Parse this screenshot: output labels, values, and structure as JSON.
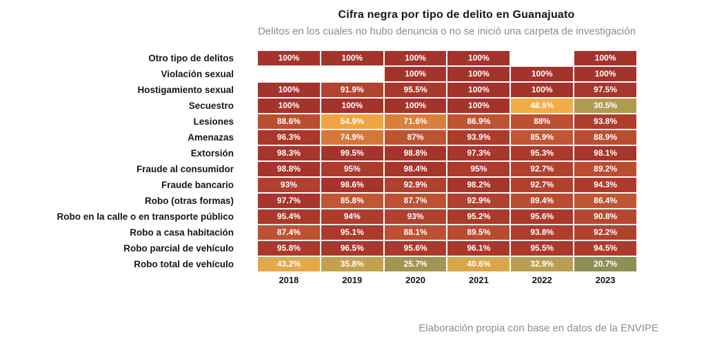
{
  "header": {
    "title": "Cifra negra por tipo de delito en Guanajuato",
    "subtitle": "Delitos en los cuales no hubo denuncia o no se inició una carpeta de investigación"
  },
  "footer": {
    "source": "Elaboración propia con base en datos de la ENVIPE"
  },
  "chart_data": {
    "type": "heatmap",
    "title": "Cifra negra por tipo de delito en Guanajuato",
    "subtitle": "Delitos en los cuales no hubo denuncia o no se inició una carpeta de investigación",
    "source": "Elaboración propia con base en datos de la ENVIPE",
    "value_unit": "%",
    "columns": [
      "2018",
      "2019",
      "2020",
      "2021",
      "2022",
      "2023"
    ],
    "rows": [
      {
        "label": "Otro tipo de delitos",
        "values": [
          100,
          100,
          100,
          100,
          null,
          100
        ]
      },
      {
        "label": "Violación sexual",
        "values": [
          null,
          null,
          100,
          100,
          100,
          100
        ]
      },
      {
        "label": "Hostigamiento sexual",
        "values": [
          100,
          91.9,
          95.5,
          100,
          100,
          97.5
        ]
      },
      {
        "label": "Secuestro",
        "values": [
          100,
          100,
          100,
          100,
          48.5,
          30.5
        ]
      },
      {
        "label": "Lesiones",
        "values": [
          88.6,
          54.9,
          71.6,
          86.9,
          88,
          93.8
        ]
      },
      {
        "label": "Amenazas",
        "values": [
          96.3,
          74.9,
          87,
          93.9,
          85.9,
          88.9
        ]
      },
      {
        "label": "Extorsión",
        "values": [
          98.3,
          99.5,
          98.8,
          97.3,
          95.3,
          98.1
        ]
      },
      {
        "label": "Fraude al consumidor",
        "values": [
          98.8,
          95,
          98.4,
          95,
          92.7,
          89.2
        ]
      },
      {
        "label": "Fraude bancario",
        "values": [
          93,
          98.6,
          92.9,
          98.2,
          92.7,
          94.3
        ]
      },
      {
        "label": "Robo (otras formas)",
        "values": [
          97.7,
          85.8,
          87.7,
          92.9,
          89.4,
          86.4
        ]
      },
      {
        "label": "Robo en la calle o en transporte público",
        "values": [
          95.4,
          94,
          93,
          95.2,
          95.6,
          90.8
        ]
      },
      {
        "label": "Robo a casa habitación",
        "values": [
          87.4,
          95.1,
          88.1,
          89.5,
          93.8,
          92.2
        ]
      },
      {
        "label": "Robo parcial de vehículo",
        "values": [
          95.8,
          96.5,
          95.6,
          96.1,
          95.5,
          94.5
        ]
      },
      {
        "label": "Robo total de vehículo",
        "values": [
          43.2,
          35.8,
          25.7,
          40.6,
          32.9,
          20.7
        ]
      }
    ],
    "color_scale": {
      "description": "value percent mapped to cell background, red high / amber mid / olive low",
      "stops": [
        [
          20,
          "#8b8e55"
        ],
        [
          26,
          "#a39553"
        ],
        [
          31,
          "#b39b52"
        ],
        [
          36,
          "#c6a04e"
        ],
        [
          41,
          "#dca74a"
        ],
        [
          49,
          "#f2ac45"
        ],
        [
          56,
          "#efa441"
        ],
        [
          66,
          "#e08d3e"
        ],
        [
          73,
          "#d87c3c"
        ],
        [
          80,
          "#cc673a"
        ],
        [
          86,
          "#c05634"
        ],
        [
          89,
          "#b94d31"
        ],
        [
          92,
          "#b24330"
        ],
        [
          94,
          "#ae3c2d"
        ],
        [
          96,
          "#a9372c"
        ],
        [
          100,
          "#a4332c"
        ]
      ],
      "cell_text_color": "#ffffff",
      "empty_cell_color": "#ffffff"
    },
    "layout": {
      "legend": false,
      "grid": false,
      "column_header_position": "bottom"
    }
  }
}
